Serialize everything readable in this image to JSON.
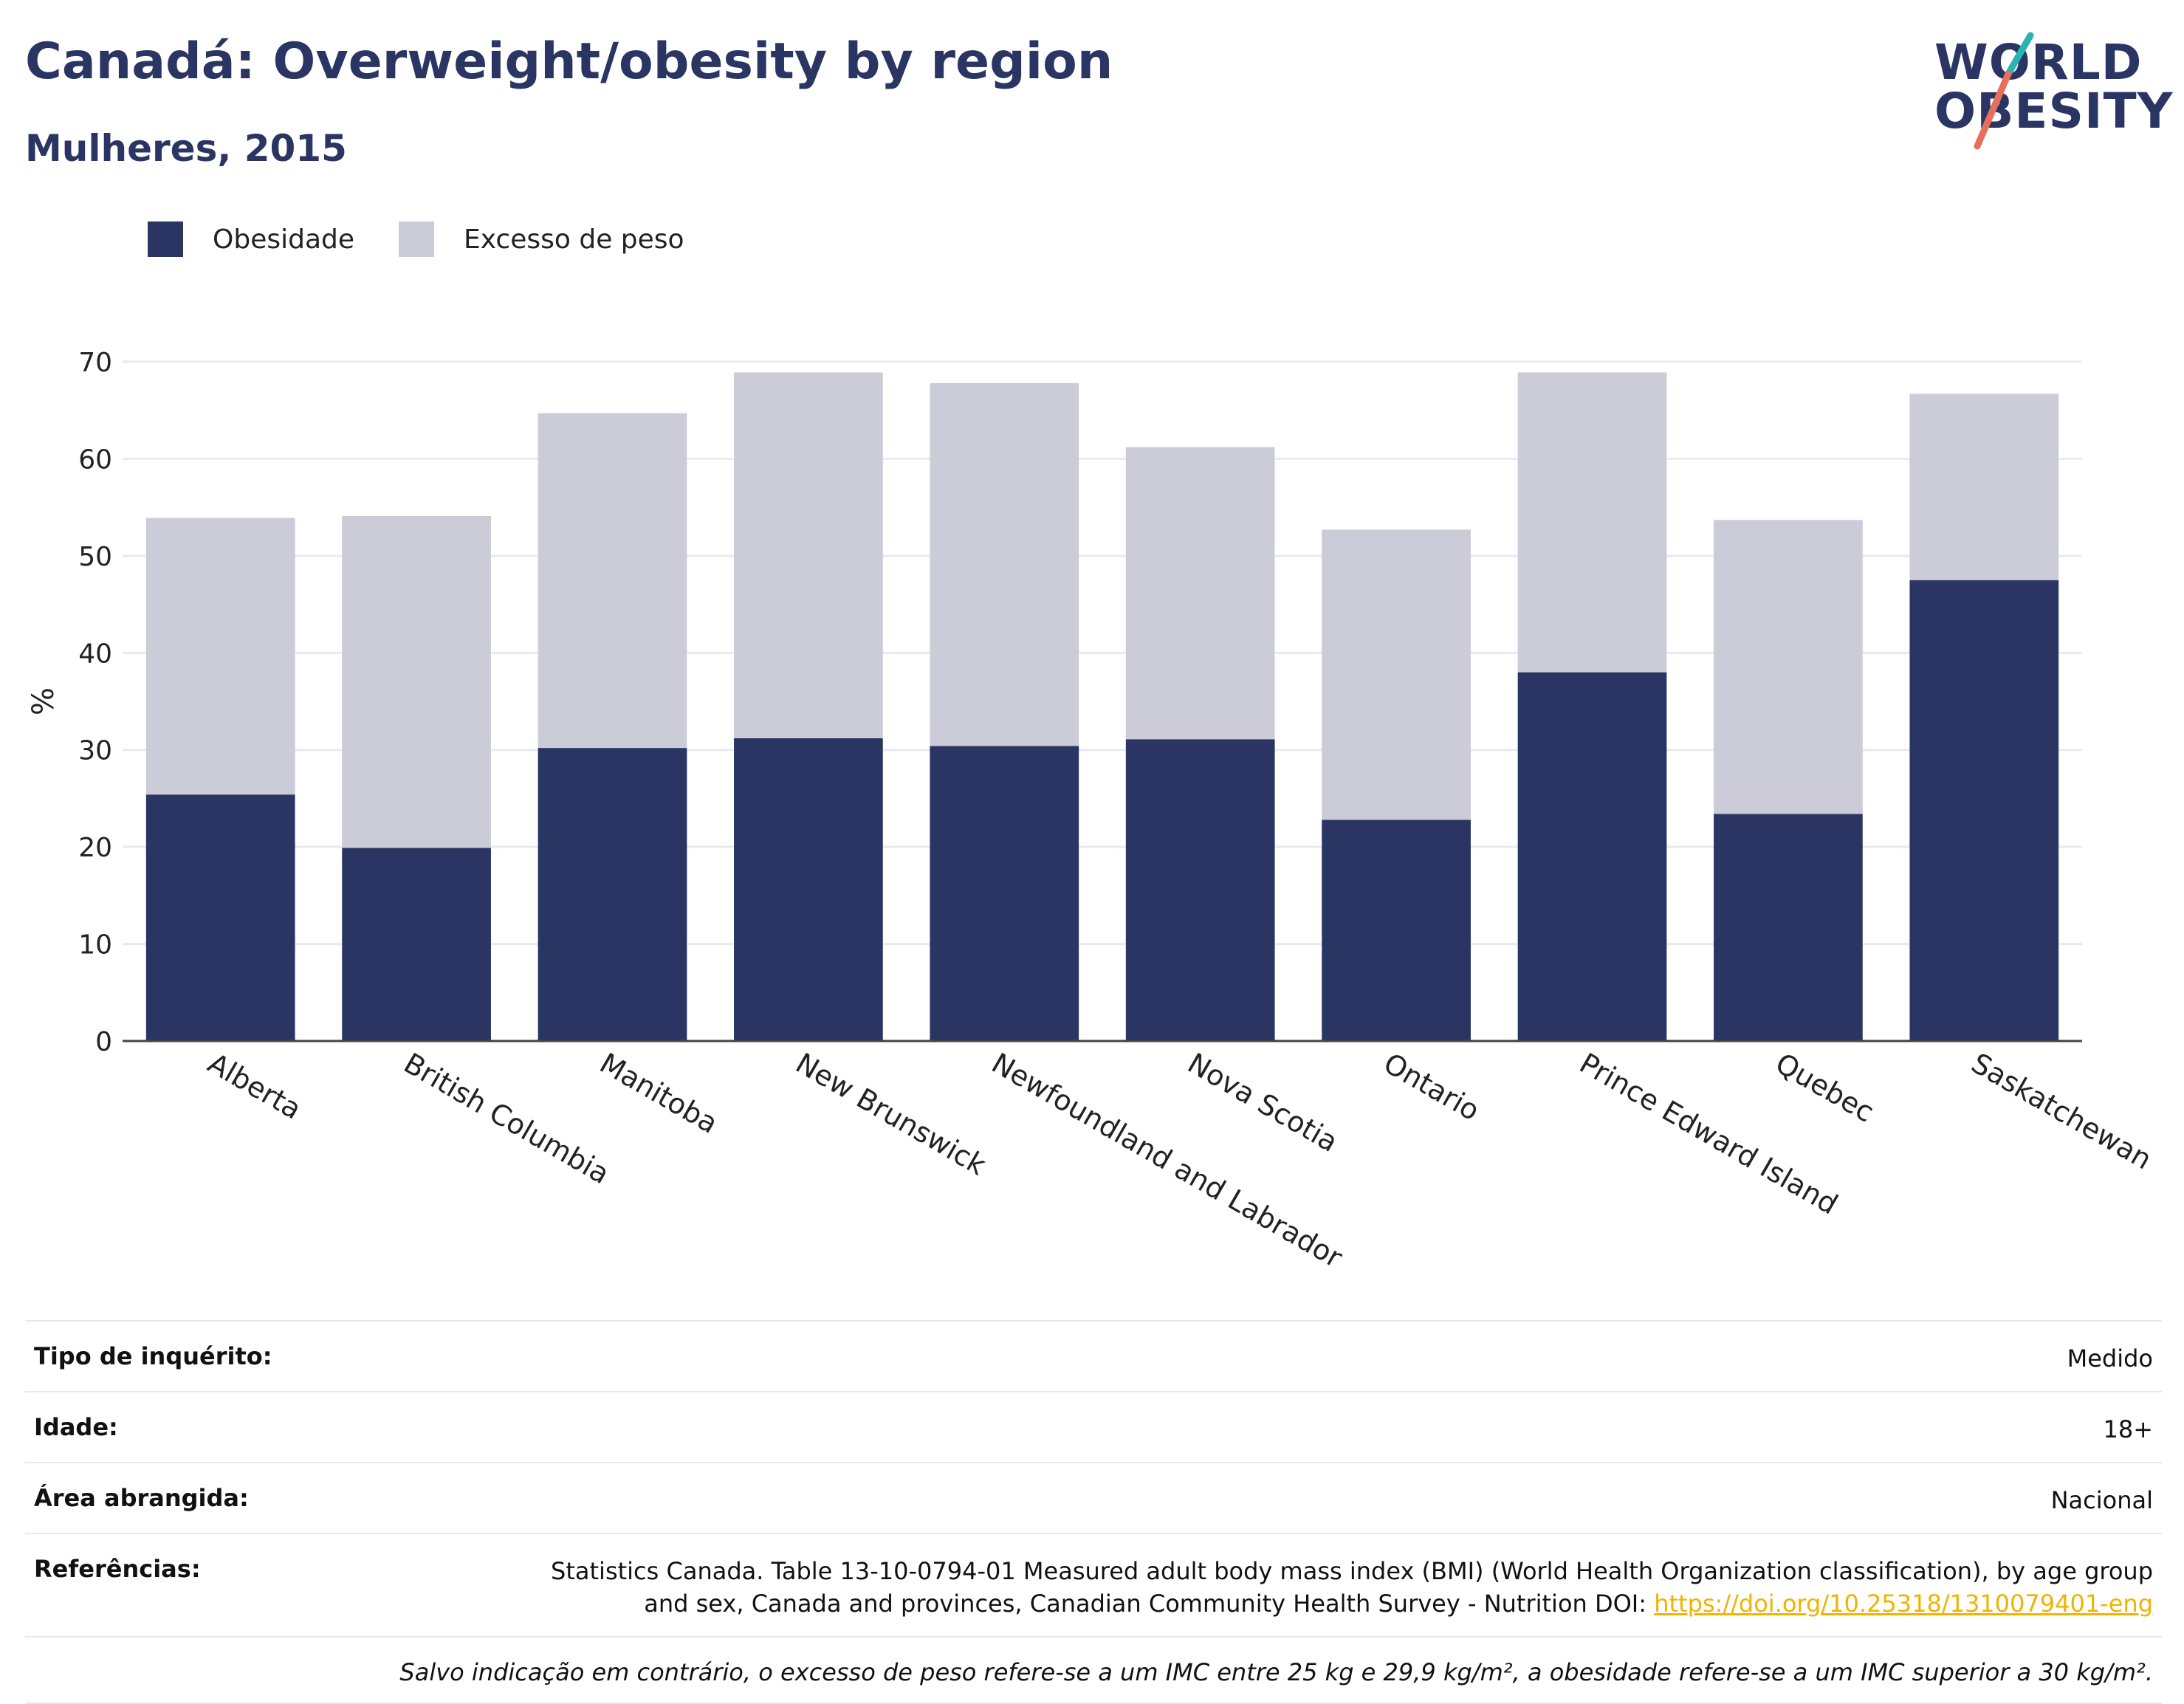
{
  "header": {
    "title": "Canadá: Overweight/obesity by region",
    "subtitle": "Mulheres, 2015"
  },
  "logo": {
    "line1": "WORLD",
    "line2": "OBESITY"
  },
  "colors": {
    "obesity": "#2a3563",
    "overweight": "#cbccd8",
    "text": "#2a3563",
    "link": "#f0b400",
    "logo_teal": "#2ab3b1",
    "logo_coral": "#e8705a"
  },
  "chart_data": {
    "type": "bar",
    "stacked": true,
    "categories": [
      "Alberta",
      "British Columbia",
      "Manitoba",
      "New Brunswick",
      "Newfoundland and Labrador",
      "Nova Scotia",
      "Ontario",
      "Prince Edward Island",
      "Quebec",
      "Saskatchewan"
    ],
    "series": [
      {
        "name": "Obesidade",
        "values": [
          25.4,
          19.9,
          30.2,
          31.2,
          30.4,
          31.1,
          22.8,
          38.0,
          23.4,
          47.5
        ]
      },
      {
        "name": "Excesso de peso",
        "values": [
          28.5,
          34.2,
          34.5,
          37.7,
          37.4,
          30.1,
          29.9,
          30.9,
          30.3,
          19.2
        ]
      }
    ],
    "ylabel": "%",
    "ylim": [
      0,
      70
    ],
    "yticks": [
      0,
      10,
      20,
      30,
      40,
      50,
      60,
      70
    ],
    "grid": true,
    "legend": "top-left"
  },
  "meta": {
    "survey_label": "Tipo de inquérito:",
    "survey_value": "Medido",
    "age_label": "Idade:",
    "age_value": "18+",
    "area_label": "Área abrangida:",
    "area_value": "Nacional",
    "refs_label": "Referências:",
    "refs_text": "Statistics Canada. Table 13-10-0794-01 Measured adult body mass index (BMI) (World Health Organization classification), by age group and sex, Canada and provinces, Canadian Community Health Survey - Nutrition DOI: ",
    "refs_link": "https://doi.org/10.25318/1310079401-eng",
    "note": "Salvo indicação em contrário, o excesso de peso refere-se a um IMC entre 25 kg e 29,9 kg/m², a obesidade refere-se a um IMC superior a 30 kg/m²."
  }
}
